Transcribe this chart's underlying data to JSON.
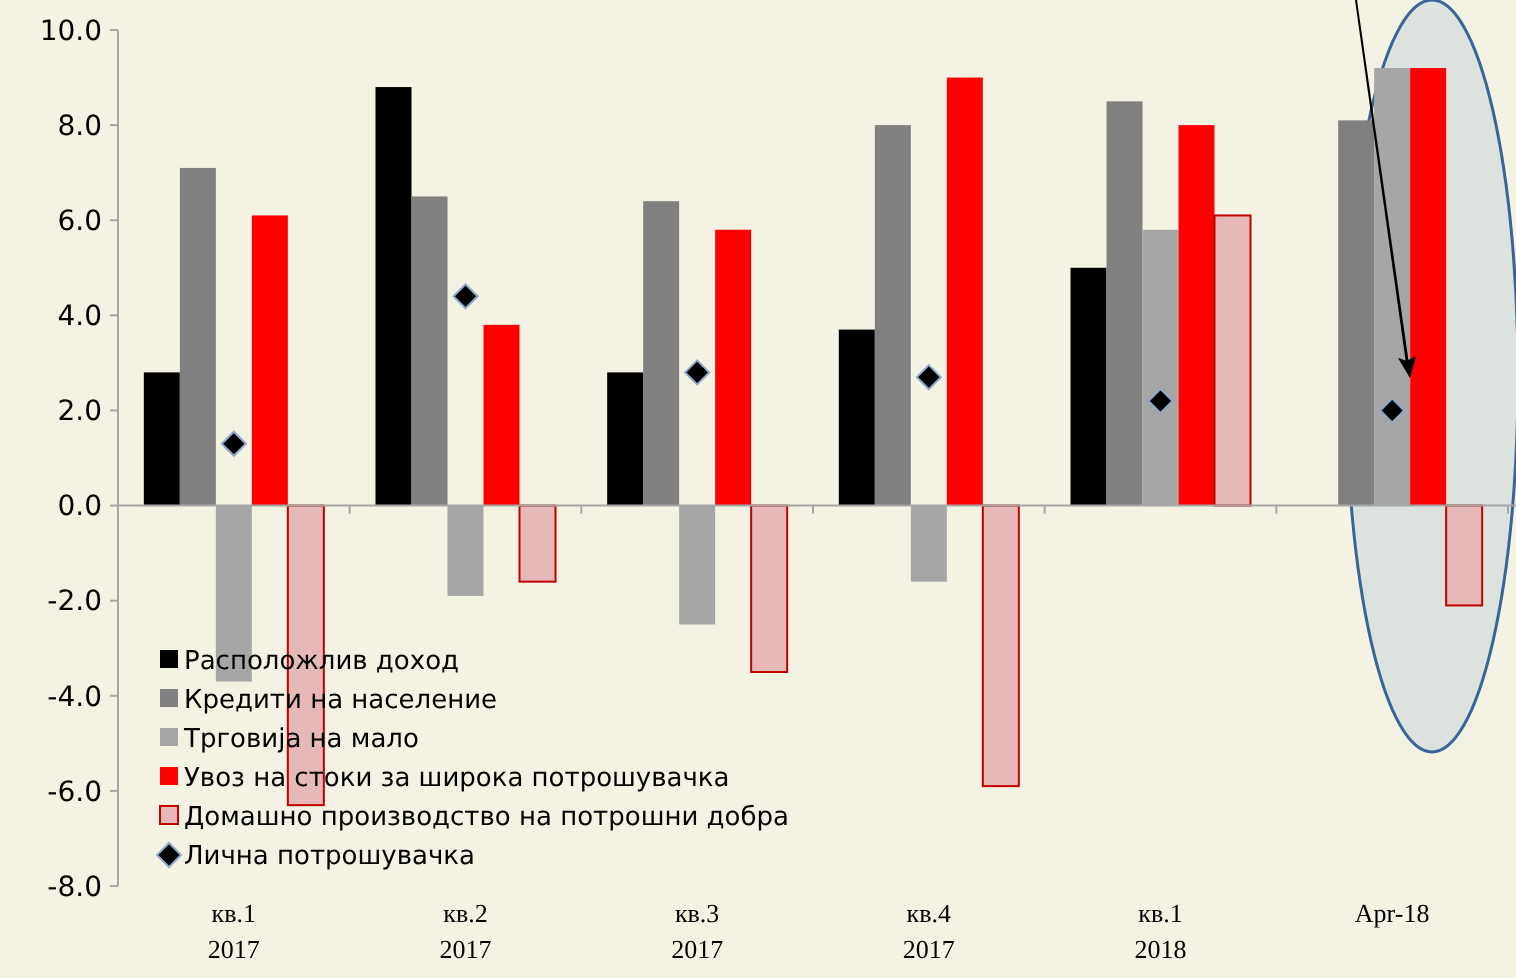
{
  "chart_data": {
    "type": "bar",
    "categories": [
      "кв.1\n2017",
      "кв.2\n2017",
      "кв.3\n2017",
      "кв.4\n2017",
      "кв.1\n2018",
      "Apr-18"
    ],
    "series": [
      {
        "name": "Расположлив доход",
        "color": "#000000",
        "values": [
          2.8,
          8.8,
          2.8,
          3.7,
          5.0,
          null
        ]
      },
      {
        "name": "Кредити на население",
        "color": "#808080",
        "values": [
          7.1,
          6.5,
          6.4,
          8.0,
          8.5,
          8.1
        ]
      },
      {
        "name": "Трговија на мало",
        "color": "#a6a6a6",
        "values": [
          -3.7,
          -1.9,
          -2.5,
          -1.6,
          5.8,
          9.2
        ]
      },
      {
        "name": "Увоз на  стоки за широка потрошувачка",
        "color": "#ff0000",
        "values": [
          6.1,
          3.8,
          5.8,
          9.0,
          8.0,
          9.2
        ]
      },
      {
        "name": "Домашно производство на потрошни добра",
        "color": "#e6b9b8",
        "values": [
          -6.3,
          -1.6,
          -3.5,
          -5.9,
          6.1,
          -2.1
        ]
      },
      {
        "name": "Лична потрошувачка",
        "type": "scatter",
        "marker": "diamond",
        "color": "#000000",
        "values": [
          1.3,
          4.4,
          2.8,
          2.7,
          2.2,
          2.0
        ]
      }
    ],
    "ylim": [
      -8,
      10
    ],
    "yticks": [
      {
        "value": -8,
        "label": "-8.0"
      },
      {
        "value": -6,
        "label": "-6.0"
      },
      {
        "value": -4,
        "label": "-4.0"
      },
      {
        "value": -2,
        "label": "-2.0"
      },
      {
        "value": 0,
        "label": "0.0"
      },
      {
        "value": 2,
        "label": "2.0"
      },
      {
        "value": 4,
        "label": "4.0"
      },
      {
        "value": 6,
        "label": "6.0"
      },
      {
        "value": 8,
        "label": "8.0"
      },
      {
        "value": 10,
        "label": "10.0"
      }
    ],
    "legend": "bottom left"
  }
}
